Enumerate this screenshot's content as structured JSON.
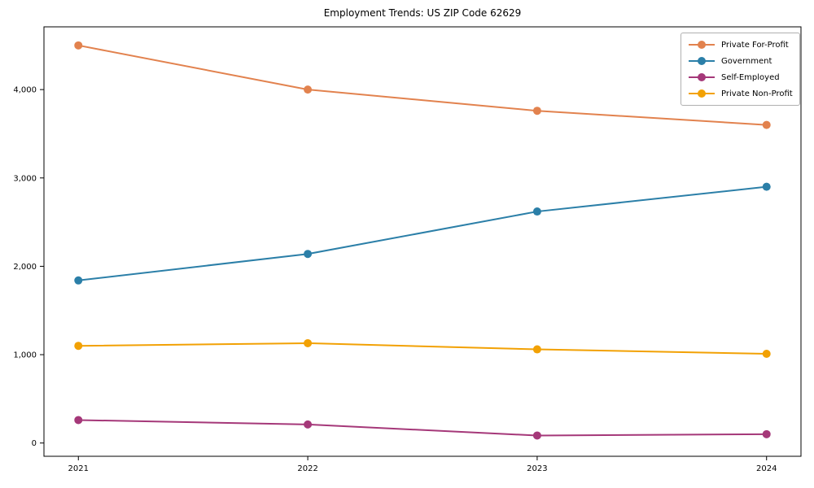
{
  "title": "Employment Trends: US ZIP Code 62629",
  "chart_data": {
    "type": "line",
    "title": "Employment Trends: US ZIP Code 62629",
    "xlabel": "",
    "ylabel": "",
    "x": [
      2021,
      2022,
      2023,
      2024
    ],
    "x_tick_labels": [
      "2021",
      "2022",
      "2023",
      "2024"
    ],
    "series": [
      {
        "name": "Private For-Profit",
        "color": "#E2824E",
        "values": [
          4500,
          4000,
          3760,
          3600
        ]
      },
      {
        "name": "Government",
        "color": "#2B7FA8",
        "values": [
          1840,
          2140,
          2620,
          2900
        ]
      },
      {
        "name": "Self-Employed",
        "color": "#A53879",
        "values": [
          260,
          210,
          85,
          100
        ]
      },
      {
        "name": "Private Non-Profit",
        "color": "#F2A104",
        "values": [
          1100,
          1130,
          1060,
          1010
        ]
      }
    ],
    "y_ticks": [
      0,
      1000,
      2000,
      3000,
      4000
    ],
    "y_tick_labels": [
      "0",
      "1,000",
      "2,000",
      "3,000",
      "4,000"
    ],
    "ylim": [
      -150,
      4710
    ],
    "xlim": [
      2020.85,
      2024.15
    ],
    "grid": false,
    "legend_position": "top-right",
    "marker": "circle",
    "line_width": 2,
    "marker_radius": 5,
    "spine_color": "#000000"
  }
}
